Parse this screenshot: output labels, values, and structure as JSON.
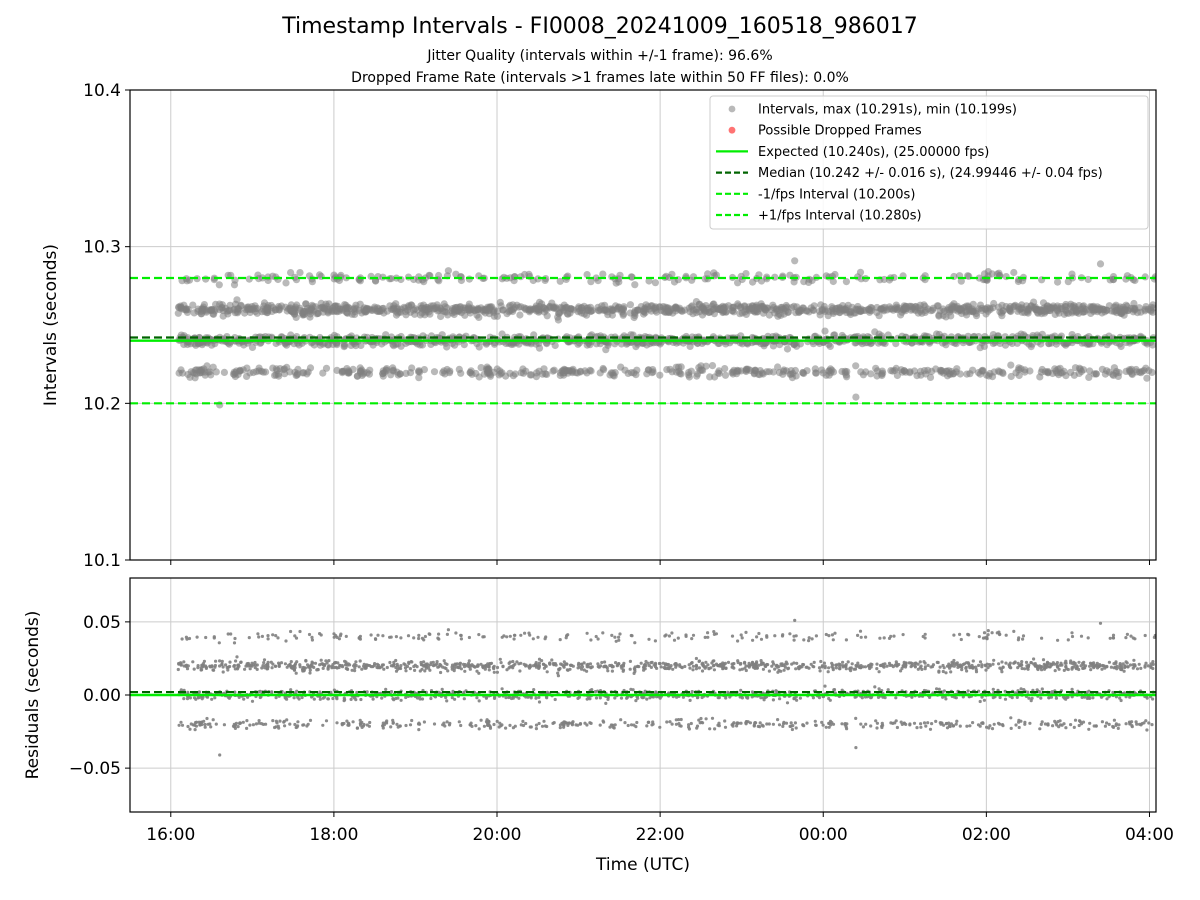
{
  "header": {
    "title": "Timestamp Intervals - FI0008_20241009_160518_986017",
    "subtitle1": "Jitter Quality (intervals within +/-1 frame): 96.6%",
    "subtitle2": "Dropped Frame Rate (intervals >1 frames late within 50 FF files): 0.0%"
  },
  "chart_data": [
    {
      "type": "scatter",
      "panel": "top",
      "ylabel": "Intervals (seconds)",
      "xlabel": "",
      "xlim_hours": [
        15.5,
        28.08
      ],
      "ylim": [
        10.1,
        10.4
      ],
      "yticks": [
        10.1,
        10.2,
        10.3,
        10.4
      ],
      "ytick_labels": [
        "10.1",
        "10.2",
        "10.3",
        "10.4"
      ],
      "grid": true,
      "legend_position": "top-right",
      "legend": [
        {
          "label": "Intervals, max (10.291s), min (10.199s)",
          "kind": "marker",
          "color": "#808080"
        },
        {
          "label": "Possible Dropped Frames",
          "kind": "marker",
          "color": "#ff0000"
        },
        {
          "label": "Expected (10.240s), (25.00000 fps)",
          "kind": "line",
          "color": "#00ee00"
        },
        {
          "label": "Median (10.242 +/- 0.016 s), (24.99446 +/- 0.04 fps)",
          "kind": "dashed",
          "color": "#006400"
        },
        {
          "label": "-1/fps Interval (10.200s)",
          "kind": "dashed",
          "color": "#00ee00"
        },
        {
          "label": "+1/fps Interval (10.280s)",
          "kind": "dashed",
          "color": "#00ee00"
        }
      ],
      "reference_lines": {
        "expected": 10.24,
        "median": 10.242,
        "minus_one_frame": 10.2,
        "plus_one_frame": 10.28
      },
      "data_range_hours": [
        16.09,
        28.08
      ],
      "interval_clusters": [
        10.22,
        10.24,
        10.26,
        10.28
      ],
      "max_interval": 10.291,
      "min_interval": 10.199
    },
    {
      "type": "scatter",
      "panel": "bottom",
      "ylabel": "Residuals (seconds)",
      "xlabel": "Time (UTC)",
      "xlim_hours": [
        15.5,
        28.08
      ],
      "ylim": [
        -0.08,
        0.08
      ],
      "yticks": [
        -0.05,
        0.0,
        0.05
      ],
      "ytick_labels": [
        "−0.05",
        "0.00",
        "0.05"
      ],
      "xticks_hours": [
        16,
        18,
        20,
        22,
        24,
        26,
        28
      ],
      "xtick_labels": [
        "16:00",
        "18:00",
        "20:00",
        "22:00",
        "00:00",
        "02:00",
        "04:00"
      ],
      "grid": true,
      "reference_lines": {
        "zero": 0.0,
        "median_offset": 0.002
      },
      "residual_clusters": [
        -0.02,
        0.0,
        0.02,
        0.04
      ]
    }
  ],
  "colors": {
    "points": "#808080",
    "expected": "#00ee00",
    "median": "#006400",
    "frame_bounds": "#00ee00",
    "grid": "#cccccc"
  }
}
